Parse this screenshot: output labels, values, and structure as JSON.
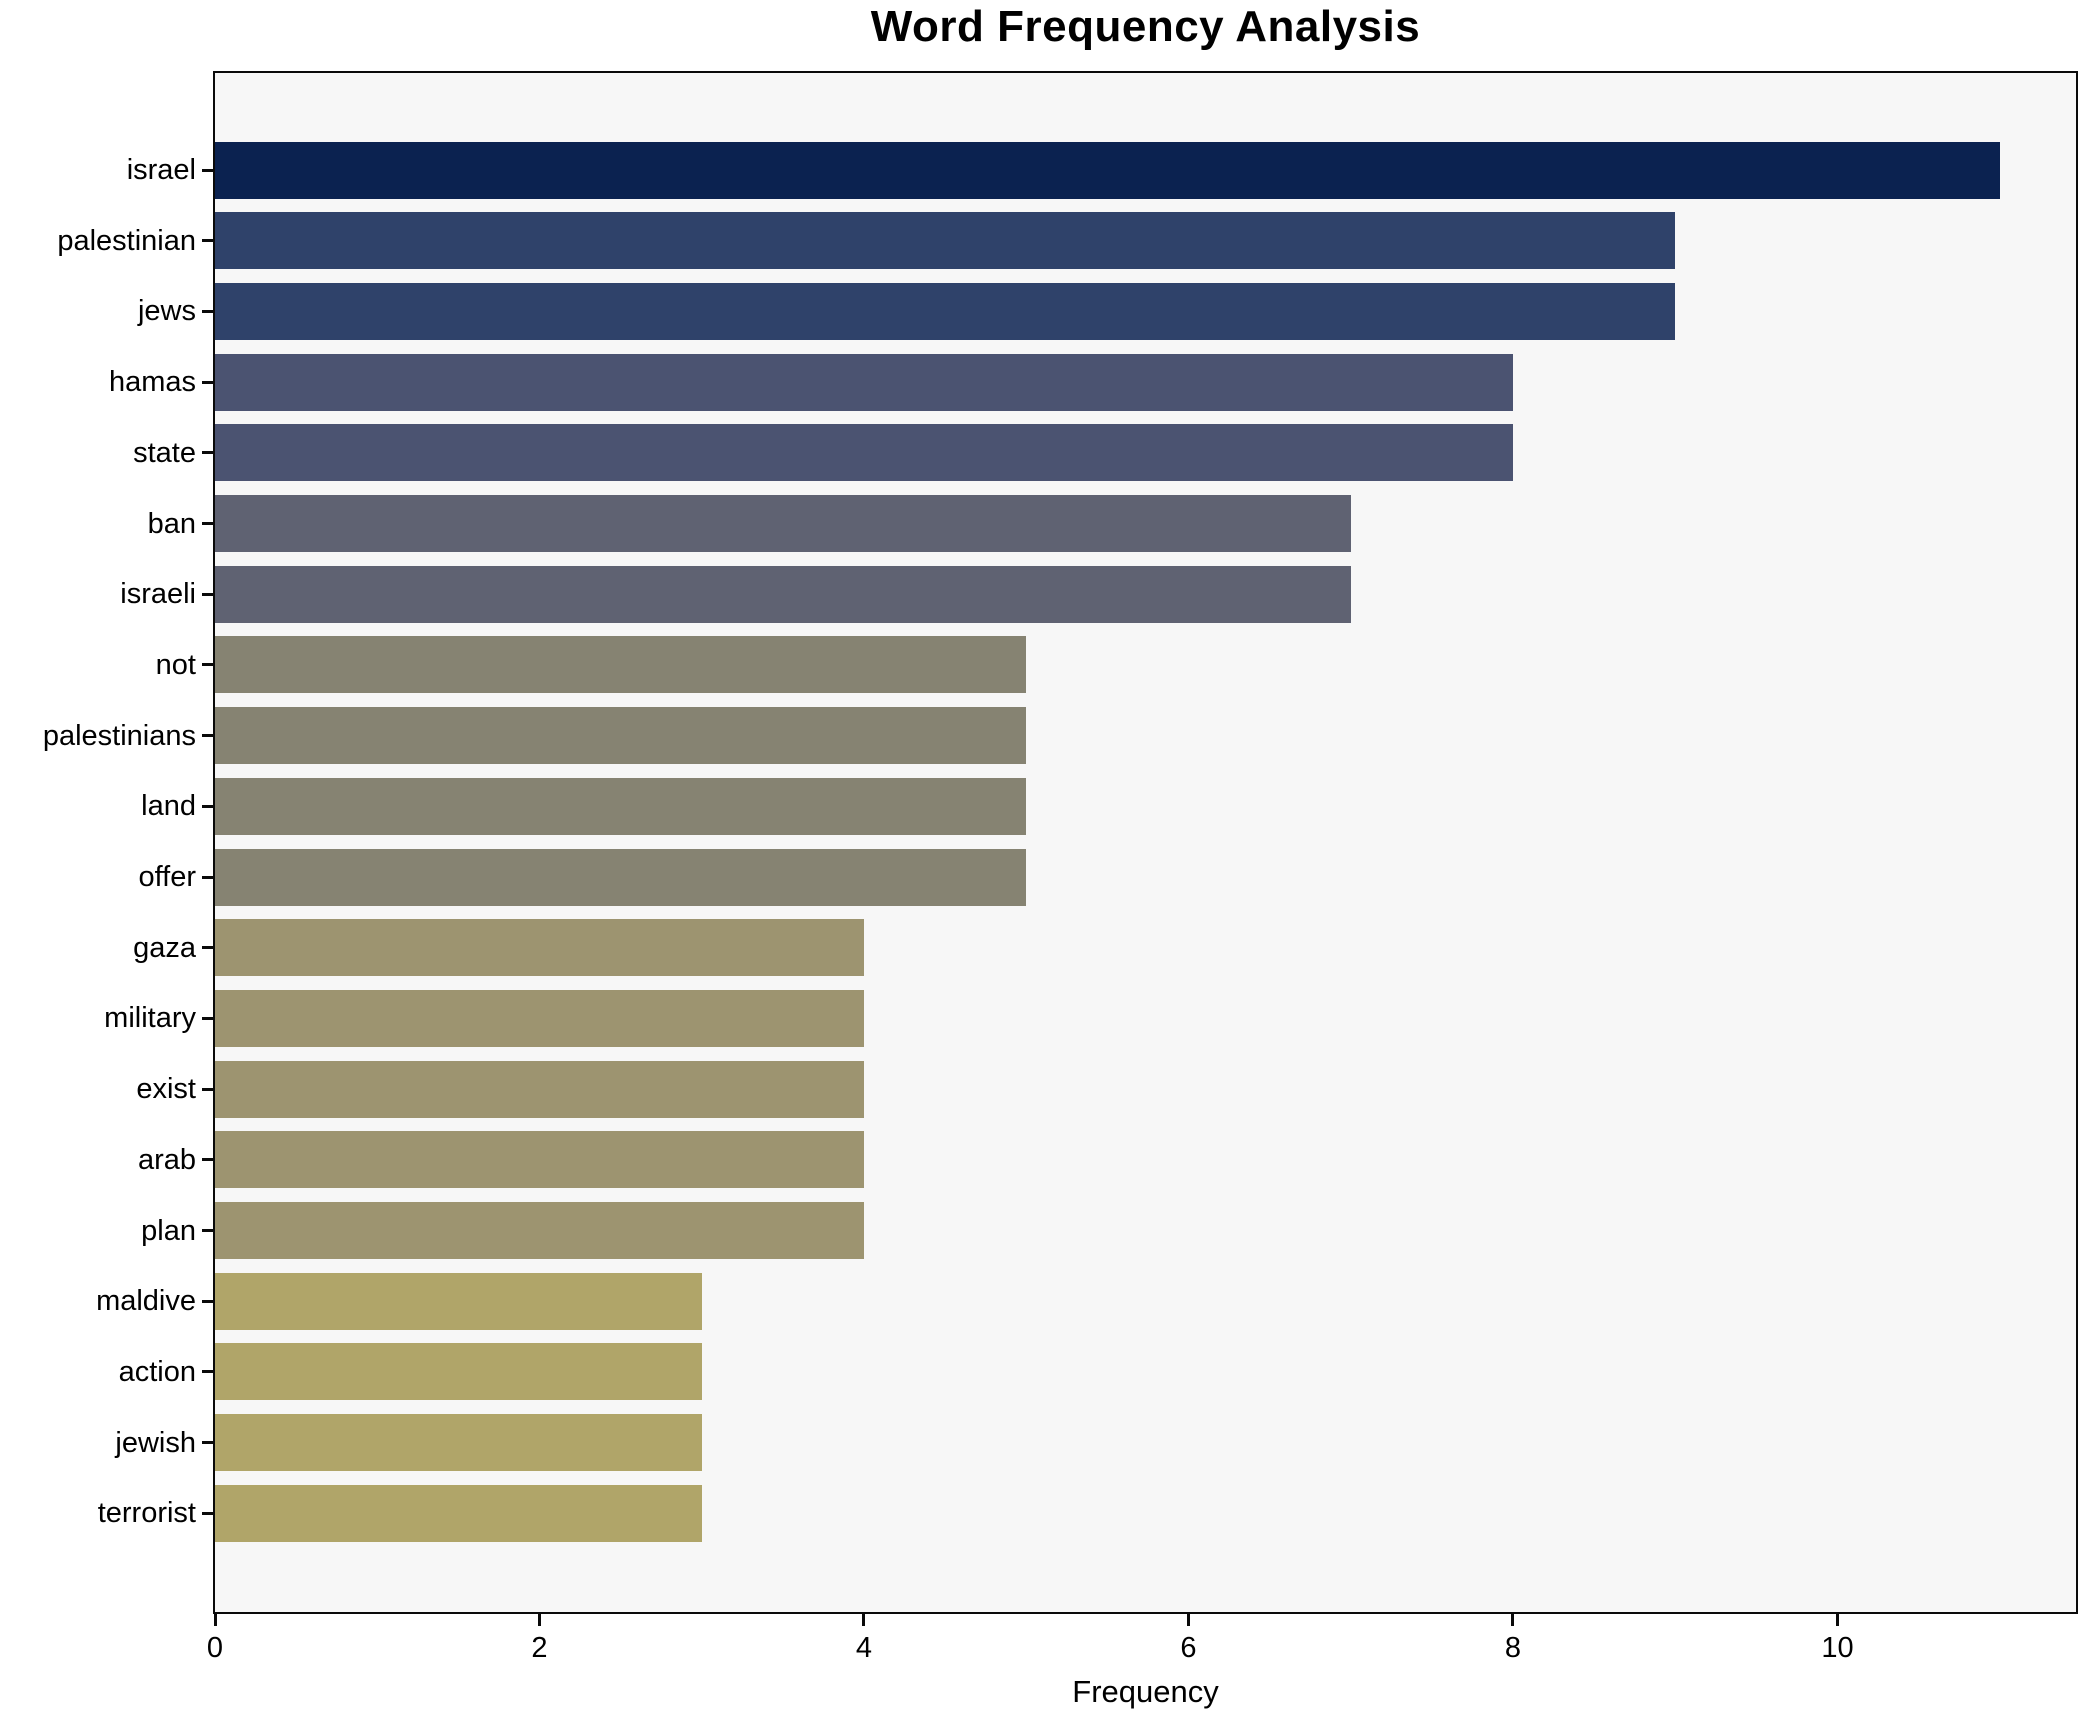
{
  "chart_data": {
    "type": "bar",
    "orientation": "horizontal",
    "title": "Word Frequency Analysis",
    "xlabel": "Frequency",
    "ylabel": "",
    "categories": [
      "israel",
      "palestinian",
      "jews",
      "hamas",
      "state",
      "ban",
      "israeli",
      "not",
      "palestinians",
      "land",
      "offer",
      "gaza",
      "military",
      "exist",
      "arab",
      "plan",
      "maldive",
      "action",
      "jewish",
      "terrorist"
    ],
    "values": [
      11,
      9,
      9,
      8,
      8,
      7,
      7,
      5,
      5,
      5,
      5,
      4,
      4,
      4,
      4,
      4,
      3,
      3,
      3,
      3
    ],
    "colors": [
      "#0b2250",
      "#2f426a",
      "#2f426a",
      "#4b5371",
      "#4b5371",
      "#5f6272",
      "#5f6272",
      "#868372",
      "#868372",
      "#868372",
      "#868372",
      "#9d9470",
      "#9d9470",
      "#9d9470",
      "#9d9470",
      "#9d9470",
      "#b0a569",
      "#b0a569",
      "#b0a569",
      "#b0a569"
    ],
    "xlim": [
      0,
      11.47
    ],
    "xticks": [
      0,
      2,
      4,
      6,
      8,
      10
    ],
    "grid": false,
    "legend": false,
    "plot_background": "#f7f7f7",
    "figure_background": "#ffffff",
    "spine_color": "#0a0a0a"
  }
}
